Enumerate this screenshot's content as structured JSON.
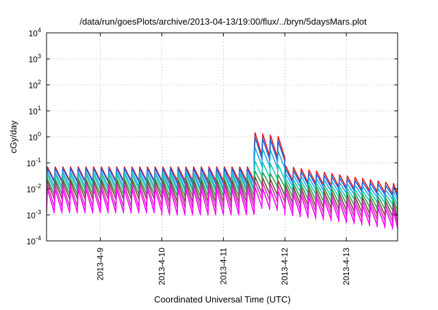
{
  "chart_data": {
    "type": "line",
    "title": "/data/run/goesPlots/archive/2013-04-13/19:00/flux/../bryn/5daysMars.plot",
    "xlabel": "Coordinated Universal Time (UTC)",
    "ylabel": "cGy/day",
    "y_scale": "log",
    "ylim": [
      0.0001,
      10000
    ],
    "y_ticks": [
      {
        "base": "10",
        "exp": "-4",
        "value": 0.0001
      },
      {
        "base": "10",
        "exp": "-3",
        "value": 0.001
      },
      {
        "base": "10",
        "exp": "-2",
        "value": 0.01
      },
      {
        "base": "10",
        "exp": "-1",
        "value": 0.1
      },
      {
        "base": "10",
        "exp": "0",
        "value": 1
      },
      {
        "base": "10",
        "exp": "1",
        "value": 10
      },
      {
        "base": "10",
        "exp": "2",
        "value": 100
      },
      {
        "base": "10",
        "exp": "3",
        "value": 1000
      },
      {
        "base": "10",
        "exp": "4",
        "value": 10000
      }
    ],
    "xlim": [
      "2013-04-08 03:00",
      "2013-04-13 20:00"
    ],
    "x_ticks": [
      "2013-4-9",
      "2013-4-10",
      "2013-4-11",
      "2013-4-12",
      "2013-4-13"
    ],
    "grid": true,
    "legend": "none",
    "sawtooth_period_hours": 3,
    "event_onset": "2013-04-11 11:00",
    "series": [
      {
        "color": "#e41a1c",
        "peaks": [
          0.07,
          0.07,
          0.07,
          1.5,
          0.12
        ],
        "troughs": [
          0.02,
          0.02,
          0.02,
          0.2,
          0.03
        ]
      },
      {
        "color": "#1f5fe0",
        "peaks": [
          0.06,
          0.06,
          0.06,
          1.0,
          0.09
        ],
        "troughs": [
          0.018,
          0.018,
          0.015,
          0.15,
          0.025
        ]
      },
      {
        "color": "#1faadf",
        "peaks": [
          0.045,
          0.045,
          0.045,
          0.4,
          0.06
        ],
        "troughs": [
          0.012,
          0.012,
          0.01,
          0.08,
          0.018
        ]
      },
      {
        "color": "#17c9b0",
        "peaks": [
          0.035,
          0.035,
          0.035,
          0.12,
          0.04
        ],
        "troughs": [
          0.009,
          0.009,
          0.008,
          0.03,
          0.012
        ]
      },
      {
        "color": "#2ea04a",
        "peaks": [
          0.025,
          0.025,
          0.025,
          0.05,
          0.03
        ],
        "troughs": [
          0.006,
          0.006,
          0.005,
          0.015,
          0.007
        ]
      },
      {
        "color": "#7a4b3a",
        "peaks": [
          0.02,
          0.02,
          0.02,
          0.03,
          0.022
        ],
        "troughs": [
          0.004,
          0.004,
          0.003,
          0.007,
          0.004
        ]
      },
      {
        "color": "#cc2fb0",
        "peaks": [
          0.015,
          0.015,
          0.015,
          0.02,
          0.016
        ],
        "troughs": [
          0.002,
          0.002,
          0.0018,
          0.004,
          0.0025
        ]
      },
      {
        "color": "#ff00ff",
        "peaks": [
          0.01,
          0.01,
          0.01,
          0.012,
          0.011
        ],
        "troughs": [
          0.0012,
          0.0012,
          0.001,
          0.002,
          0.0015
        ]
      }
    ]
  }
}
